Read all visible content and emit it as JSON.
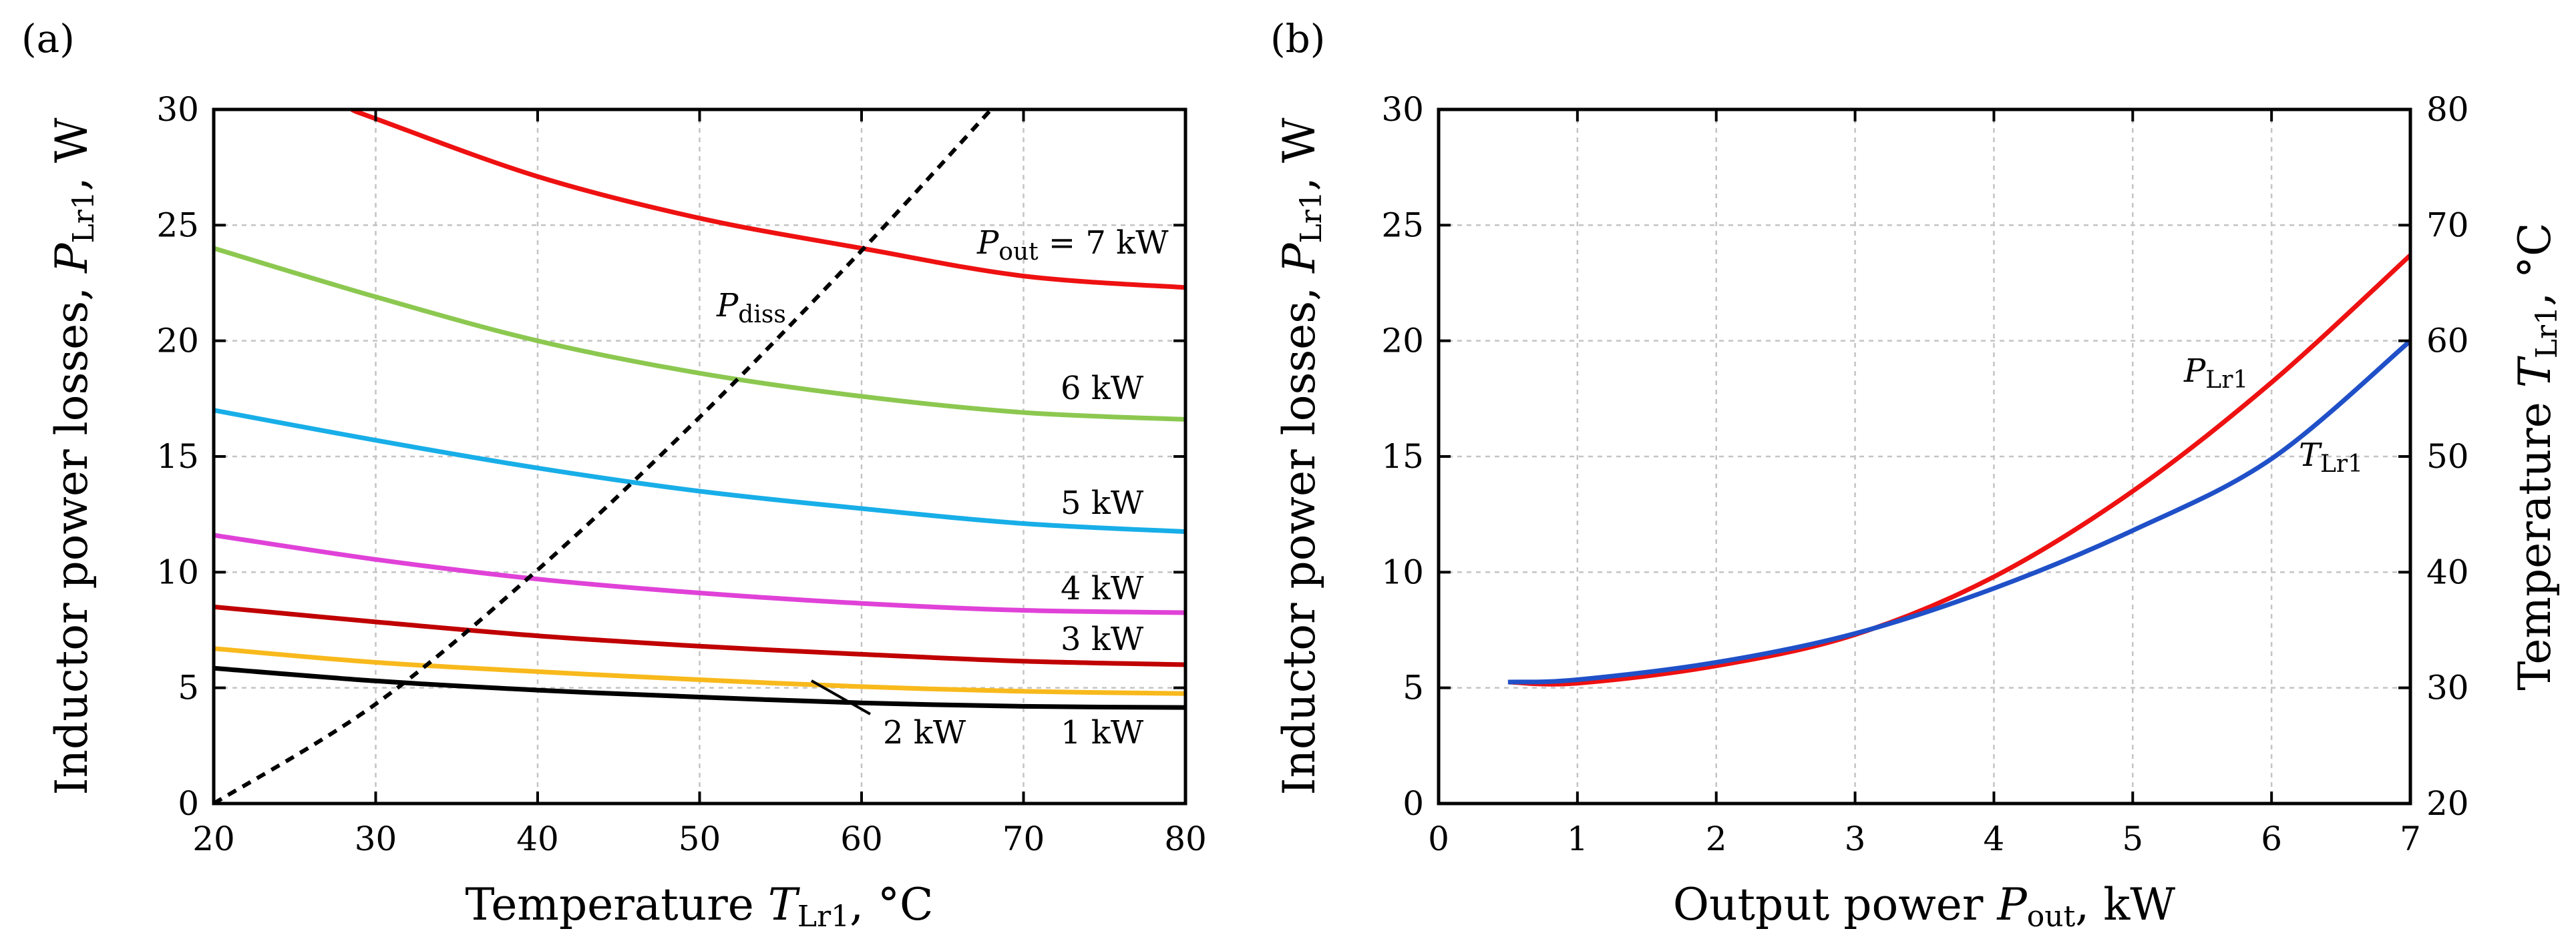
{
  "chart_data": [
    {
      "type": "line",
      "panel_label": "(a)",
      "xlabel_parts": [
        "Temperature ",
        "T",
        "Lr1",
        ", °C"
      ],
      "ylabel_parts": [
        "Inductor power losses, ",
        "P",
        "Lr1",
        ", W"
      ],
      "xlim": [
        20,
        80
      ],
      "ylim": [
        0,
        30
      ],
      "xticks": [
        20,
        30,
        40,
        50,
        60,
        70,
        80
      ],
      "yticks": [
        0,
        5,
        10,
        15,
        20,
        25,
        30
      ],
      "grid": true,
      "series": [
        {
          "name": "1 kW",
          "color": "#000000",
          "x": [
            20,
            30,
            40,
            50,
            60,
            70,
            80
          ],
          "y": [
            5.85,
            5.3,
            4.9,
            4.6,
            4.35,
            4.2,
            4.15
          ]
        },
        {
          "name": "2 kW",
          "color": "#f8b91c",
          "x": [
            20,
            30,
            40,
            50,
            60,
            70,
            80
          ],
          "y": [
            6.7,
            6.1,
            5.7,
            5.35,
            5.05,
            4.85,
            4.75
          ]
        },
        {
          "name": "3 kW",
          "color": "#c00000",
          "x": [
            20,
            30,
            40,
            50,
            60,
            70,
            80
          ],
          "y": [
            8.5,
            7.85,
            7.25,
            6.8,
            6.45,
            6.15,
            6.0
          ]
        },
        {
          "name": "4 kW",
          "color": "#e042d8",
          "x": [
            20,
            30,
            40,
            50,
            60,
            70,
            80
          ],
          "y": [
            11.6,
            10.55,
            9.7,
            9.1,
            8.65,
            8.35,
            8.25
          ]
        },
        {
          "name": "5 kW",
          "color": "#18aee8",
          "x": [
            20,
            30,
            40,
            50,
            60,
            70,
            80
          ],
          "y": [
            17.0,
            15.7,
            14.5,
            13.5,
            12.75,
            12.1,
            11.75
          ]
        },
        {
          "name": "6 kW",
          "color": "#8cc850",
          "x": [
            20,
            30,
            40,
            50,
            60,
            70,
            80
          ],
          "y": [
            24.0,
            21.9,
            20.0,
            18.6,
            17.6,
            16.9,
            16.6
          ]
        },
        {
          "name": "7 kW",
          "color": "#ee1111",
          "x": [
            28.5,
            30,
            40,
            50,
            60,
            70,
            80
          ],
          "y": [
            30.0,
            29.6,
            27.1,
            25.3,
            24.0,
            22.8,
            22.3
          ]
        },
        {
          "name": "P_diss",
          "color": "#000000",
          "dashed": true,
          "x": [
            20,
            30,
            40,
            50,
            60,
            68
          ],
          "y": [
            0.0,
            4.3,
            10.1,
            16.7,
            23.9,
            30.0
          ]
        }
      ],
      "annotations": {
        "pout_prefix": "P",
        "pout_sub": "out",
        "pout_suffix": " = 7 kW",
        "kw6": "6 kW",
        "kw5": "5 kW",
        "kw4": "4 kW",
        "kw3": "3 kW",
        "kw2": "2 kW",
        "kw1": "1 kW",
        "pdiss_main": "P",
        "pdiss_sub": "diss"
      }
    },
    {
      "type": "line",
      "panel_label": "(b)",
      "xlabel_parts": [
        "Output power ",
        "P",
        "out",
        ", kW"
      ],
      "ylabel_parts": [
        "Inductor power losses, ",
        "P",
        "Lr1",
        ", W"
      ],
      "y2label_parts": [
        "Temperature ",
        "T",
        "Lr1",
        ", °C"
      ],
      "xlim": [
        0,
        7
      ],
      "ylim": [
        0,
        30
      ],
      "y2lim": [
        20,
        80
      ],
      "xticks": [
        0,
        1,
        2,
        3,
        4,
        5,
        6,
        7
      ],
      "yticks": [
        0,
        5,
        10,
        15,
        20,
        25,
        30
      ],
      "y2ticks": [
        20,
        30,
        40,
        50,
        60,
        70,
        80
      ],
      "grid": true,
      "series": [
        {
          "name": "P_Lr1",
          "color": "#ee1111",
          "axis": "left",
          "x": [
            0.5,
            1,
            2,
            3,
            4,
            5,
            6,
            7
          ],
          "y": [
            5.25,
            5.2,
            5.95,
            7.3,
            9.8,
            13.5,
            18.2,
            23.7
          ]
        },
        {
          "name": "T_Lr1",
          "color": "#2050c8",
          "axis": "right",
          "x": [
            0.5,
            1,
            2,
            3,
            4,
            5,
            6,
            7
          ],
          "y": [
            30.5,
            30.7,
            32.2,
            34.7,
            38.6,
            43.6,
            49.8,
            60.0
          ]
        }
      ],
      "annotations": {
        "plr_main": "P",
        "plr_sub": "Lr1",
        "tlr_main": "T",
        "tlr_sub": "Lr1"
      }
    }
  ]
}
